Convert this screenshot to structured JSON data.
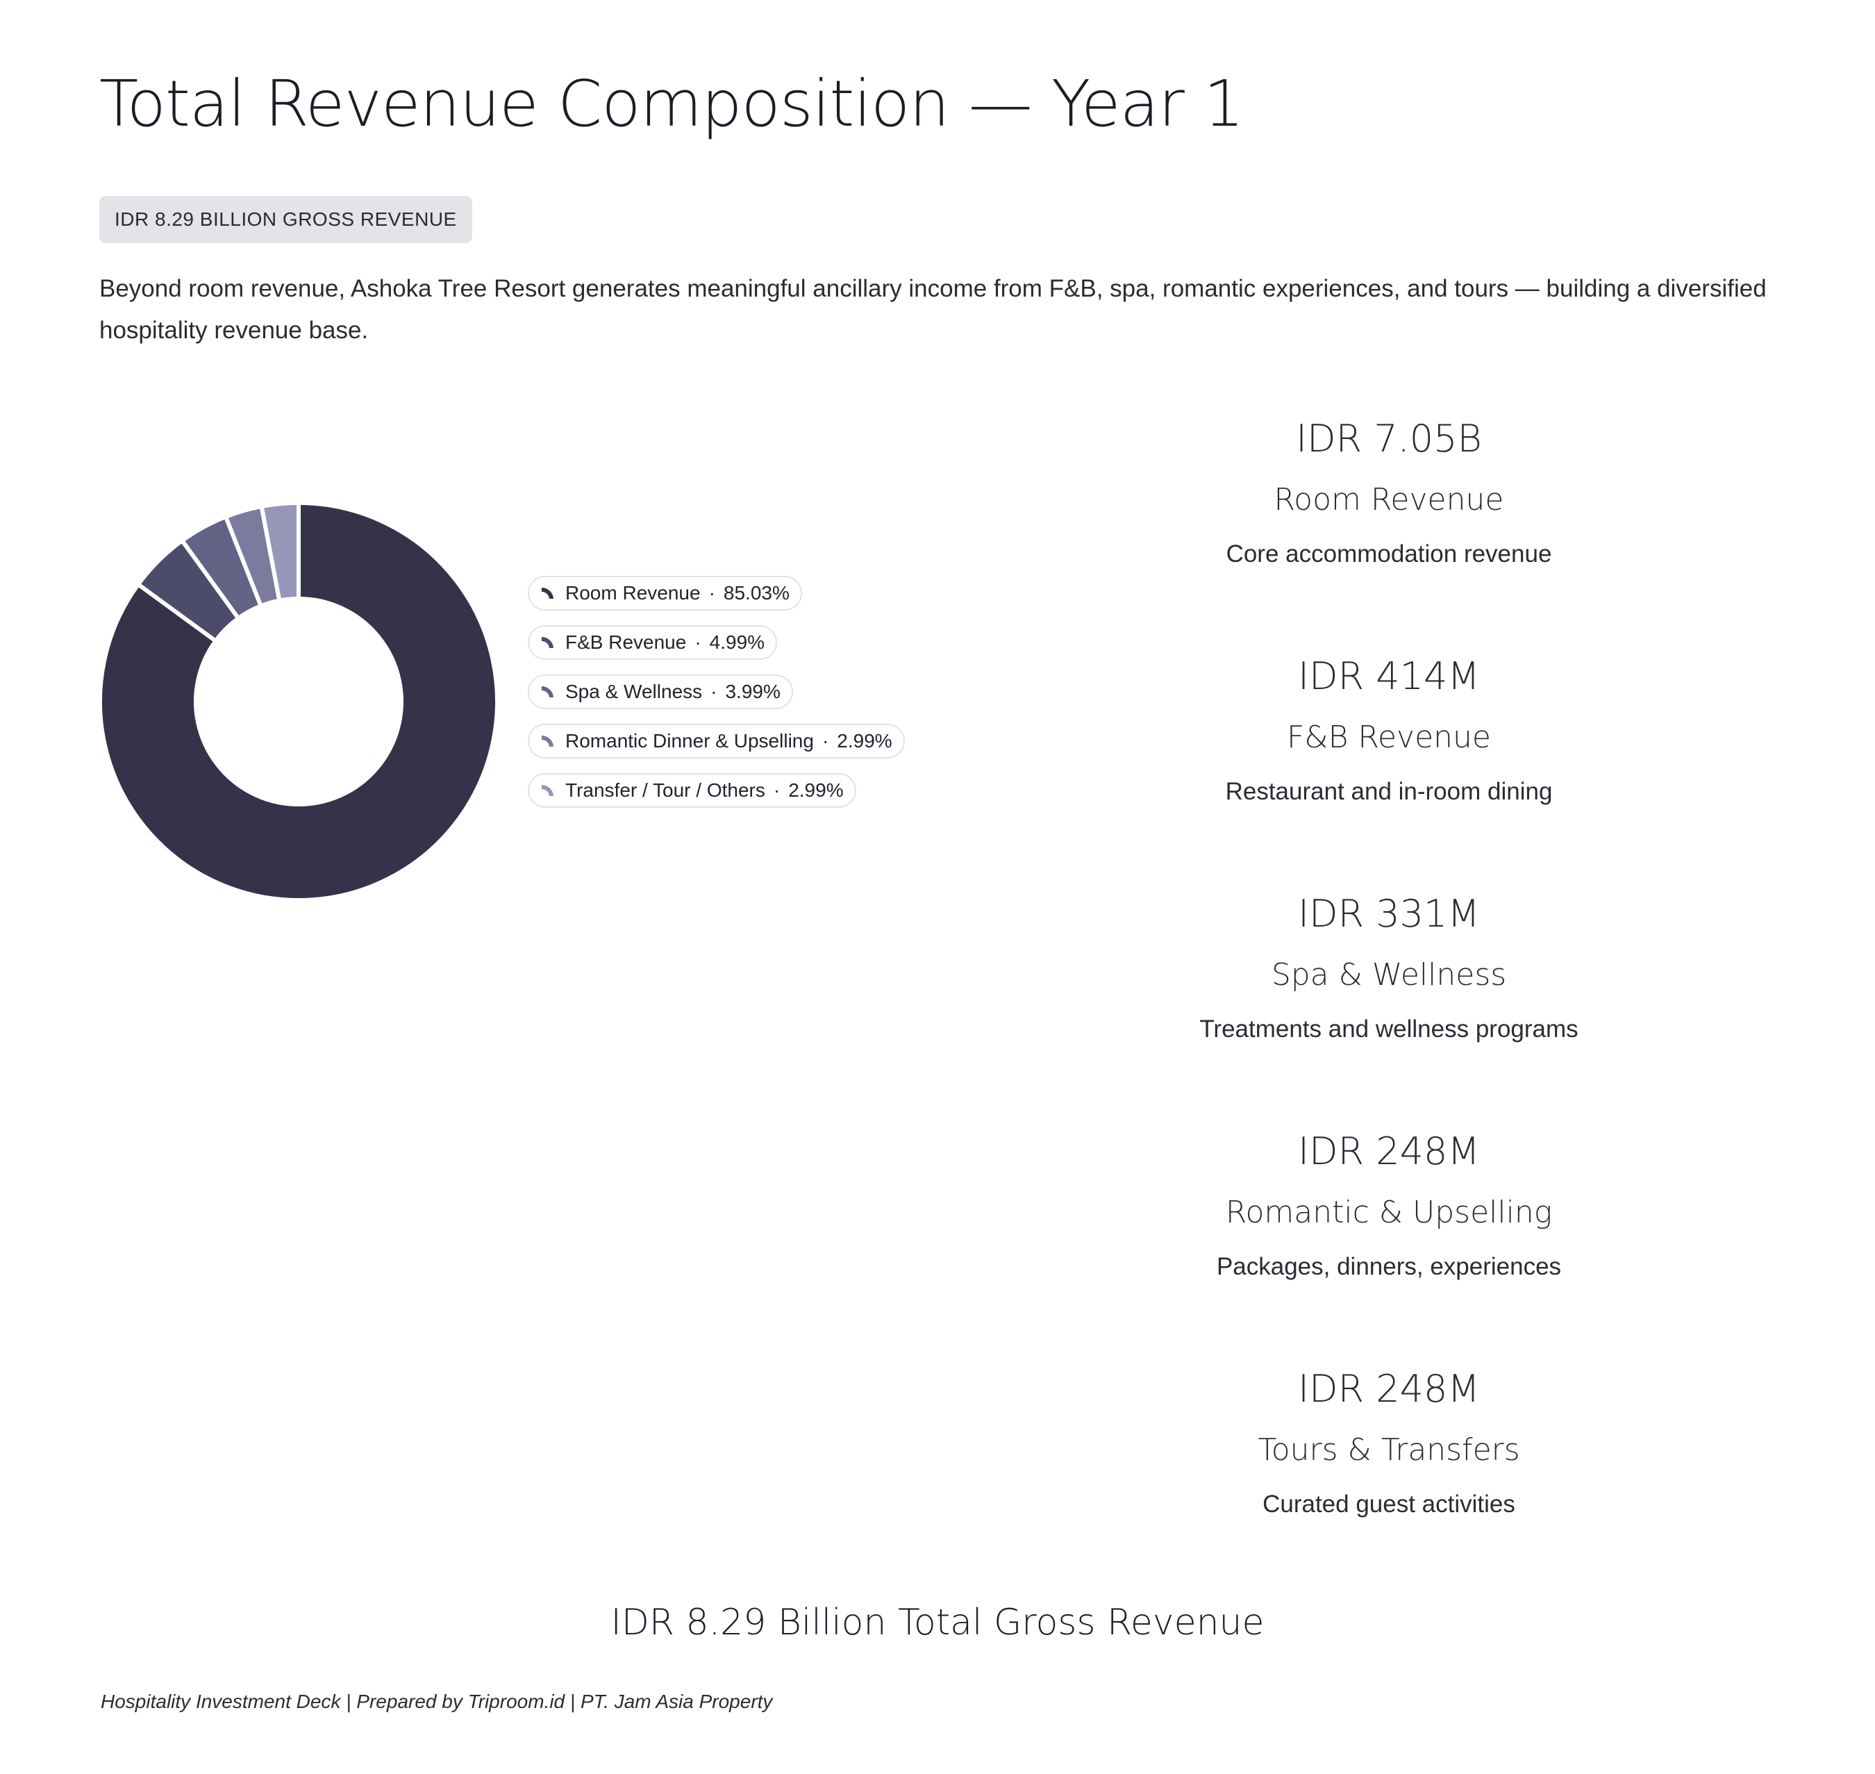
{
  "header": {
    "title": "Total Revenue Composition — Year 1",
    "badge": "IDR 8.29 BILLION GROSS REVENUE",
    "intro": "Beyond room revenue, Ashoka Tree Resort generates meaningful ancillary income from F&B, spa, romantic experiences, and tours — building a diversified hospitality revenue base."
  },
  "chart_data": {
    "type": "pie",
    "variant": "donut",
    "title": "",
    "categories": [
      "Room Revenue",
      "F&B Revenue",
      "Spa & Wellness",
      "Romantic Dinner & Upselling",
      "Transfer / Tour / Others"
    ],
    "values": [
      85.03,
      4.99,
      3.99,
      2.99,
      2.99
    ],
    "value_labels": [
      "85.03%",
      "4.99%",
      "3.99%",
      "2.99%",
      "2.99%"
    ],
    "colors": [
      "#34334a",
      "#4d4b6a",
      "#646285",
      "#7c7a9d",
      "#9896b8"
    ],
    "legend_position": "right",
    "unit": "%"
  },
  "metrics": [
    {
      "value": "IDR 7.05B",
      "label": "Room Revenue",
      "desc": "Core accommodation revenue"
    },
    {
      "value": "IDR 414M",
      "label": "F&B Revenue",
      "desc": "Restaurant and in-room dining"
    },
    {
      "value": "IDR 331M",
      "label": "Spa & Wellness",
      "desc": "Treatments and wellness programs"
    },
    {
      "value": "IDR 248M",
      "label": "Romantic & Upselling",
      "desc": "Packages, dinners, experiences"
    },
    {
      "value": "IDR 248M",
      "label": "Tours & Transfers",
      "desc": "Curated guest activities"
    }
  ],
  "total": "IDR 8.29 Billion Total Gross Revenue",
  "footer": "Hospitality Investment Deck | Prepared by Triproom.id | PT. Jam Asia Property",
  "legend_separator": "·"
}
